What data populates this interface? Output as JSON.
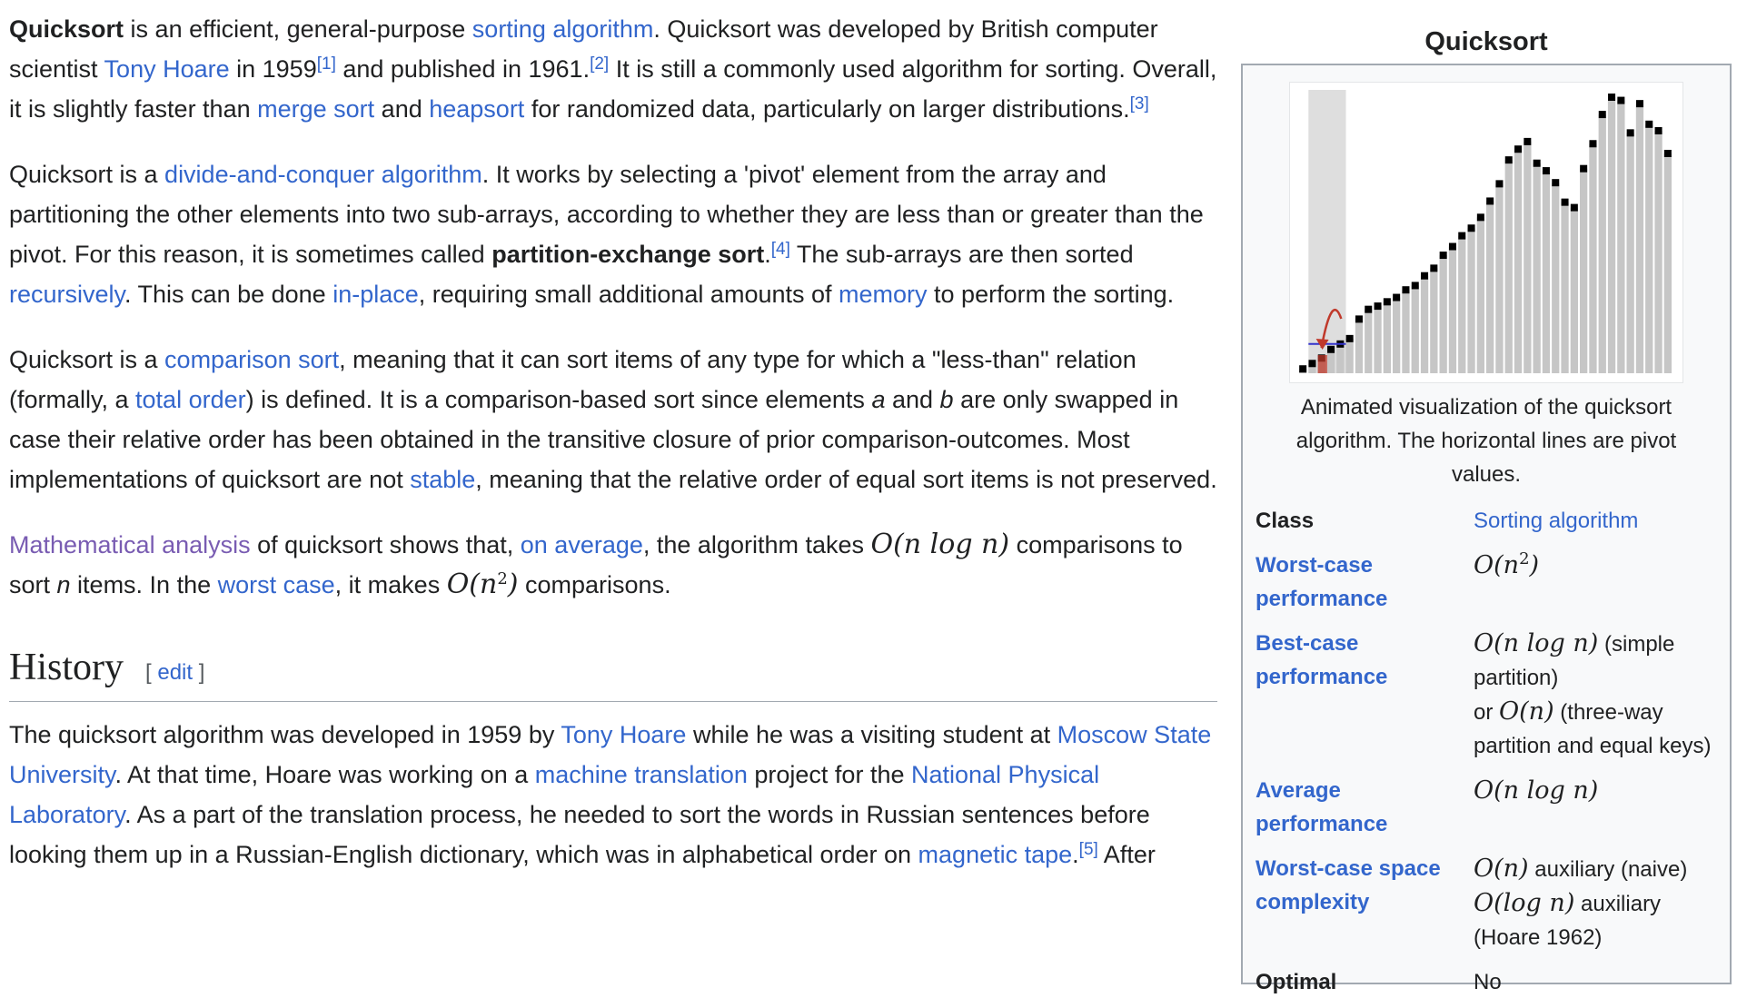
{
  "article": {
    "p1": {
      "b1": "Quicksort",
      "t1": " is an efficient, general-purpose ",
      "l1": "sorting algorithm",
      "t2": ". Quicksort was developed by British computer scientist ",
      "l2": "Tony Hoare",
      "t3": " in 1959",
      "r1": "[1]",
      "t4": " and published in 1961.",
      "r2": "[2]",
      "t5": " It is still a commonly used algorithm for sorting. Overall, it is slightly faster than ",
      "l3": "merge sort",
      "t6": " and ",
      "l4": "heapsort",
      "t7": " for randomized data, particularly on larger distributions.",
      "r3": "[3]"
    },
    "p2": {
      "t1": "Quicksort is a ",
      "l1": "divide-and-conquer algorithm",
      "t2": ". It works by selecting a 'pivot' element from the array and partitioning the other elements into two sub-arrays, according to whether they are less than or greater than the pivot. For this reason, it is sometimes called ",
      "b1": "partition-exchange sort",
      "t3": ".",
      "r1": "[4]",
      "t4": " The sub-arrays are then sorted ",
      "l2": "recursively",
      "t5": ". This can be done ",
      "l3": "in-place",
      "t6": ", requiring small additional amounts of ",
      "l4": "memory",
      "t7": " to perform the sorting."
    },
    "p3": {
      "t1": "Quicksort is a ",
      "l1": "comparison sort",
      "t2": ", meaning that it can sort items of any type for which a \"less-than\" relation (formally, a ",
      "l2": "total order",
      "t3": ") is defined. It is a comparison-based sort since elements ",
      "e1": "a",
      "t4": " and ",
      "e2": "b",
      "t5": " are only swapped in case their relative order has been obtained in the transitive closure of prior comparison-outcomes. Most implementations of quicksort are not ",
      "l3": "stable",
      "t6": ", meaning that the relative order of equal sort items is not preserved."
    },
    "p4": {
      "l1": "Mathematical analysis",
      "t1": " of quicksort shows that, ",
      "l2": "on average",
      "t2": ", the algorithm takes ",
      "m1": "O(n log n)",
      "t3": " comparisons to sort ",
      "e1": "n",
      "t4": " items. In the ",
      "l3": "worst case",
      "t5": ", it makes ",
      "m2a": "O(n",
      "m2s": "2",
      "m2b": ")",
      "t6": " comparisons."
    },
    "history": {
      "heading": "History",
      "edit_open": "[ ",
      "edit_label": "edit",
      "edit_close": " ]",
      "p": {
        "t1": "The quicksort algorithm was developed in 1959 by ",
        "l1": "Tony Hoare",
        "t2": " while he was a visiting student at ",
        "l2": "Moscow State University",
        "t3": ". At that time, Hoare was working on a ",
        "l3": "machine translation",
        "t4": " project for the ",
        "l4": "National Physical Laboratory",
        "t5": ". As a part of the translation process, he needed to sort the words in Russian sentences before looking them up in a Russian-English dictionary, which was in alphabetical order on ",
        "l5": "magnetic tape",
        "t6": ".",
        "r1": "[5]",
        "t7": " After"
      }
    }
  },
  "infobox": {
    "title": "Quicksort",
    "caption": "Animated visualization of the quicksort algorithm. The horizontal lines are pivot values.",
    "rows": {
      "class": {
        "label": "Class",
        "value": "Sorting algorithm"
      },
      "worst_time": {
        "label": "Worst-case performance",
        "m_a": "O(n",
        "m_s": "2",
        "m_b": ")"
      },
      "best_time": {
        "label": "Best-case performance",
        "m1": "O(n log n)",
        "t1": " (simple partition)",
        "t2": "or ",
        "m2": "O(n)",
        "t3": " (three-way partition and equal keys)"
      },
      "avg_time": {
        "label": "Average performance",
        "m1": "O(n log n)"
      },
      "space": {
        "label": "Worst-case space complexity",
        "m1": "O(n)",
        "t1": " auxiliary (naive)",
        "m2": "O(log n)",
        "t2": " auxiliary (Hoare 1962)"
      },
      "optimal": {
        "label": "Optimal",
        "value": "No"
      }
    },
    "visualization": {
      "bar_values": [
        4,
        9,
        14,
        22,
        27,
        32,
        50,
        59,
        62,
        66,
        70,
        77,
        81,
        90,
        97,
        109,
        117,
        127,
        134,
        144,
        159,
        175,
        197,
        207,
        214,
        194,
        187,
        176,
        158,
        153,
        189,
        212,
        239,
        255,
        252,
        222,
        249,
        230,
        224,
        203
      ],
      "bar_color": "#c6c6c6",
      "marker_color": "#000000",
      "pivot_color": "#3333cc",
      "swap_color": "#c0392b",
      "highlight_color": "#dedede"
    }
  }
}
